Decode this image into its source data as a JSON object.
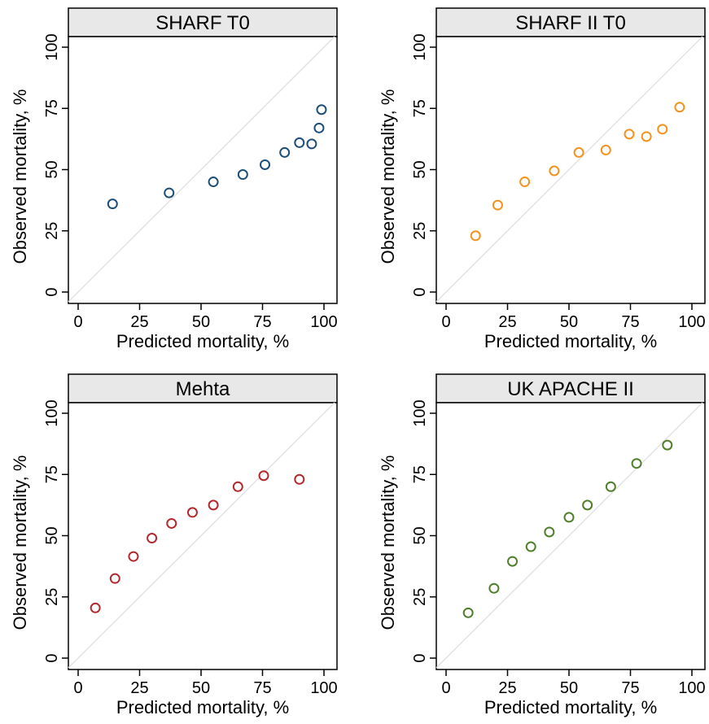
{
  "chart_data": [
    {
      "type": "scatter",
      "title": "SHARF T0",
      "xlabel": "Predicted mortality, %",
      "ylabel": "Observed mortality, %",
      "xlim": [
        0,
        100
      ],
      "ylim": [
        0,
        100
      ],
      "xticks": [
        0,
        25,
        50,
        75,
        100
      ],
      "yticks": [
        0,
        25,
        50,
        75,
        100
      ],
      "reference_line": "diagonal y = x",
      "grid": false,
      "marker": "hollow circle",
      "color": "#1f4e79",
      "x": [
        14,
        37,
        55,
        67,
        76,
        84,
        90,
        95,
        98,
        99
      ],
      "y": [
        36,
        40.5,
        45,
        48,
        52,
        57,
        61,
        60.5,
        67,
        74.5
      ]
    },
    {
      "type": "scatter",
      "title": "SHARF II T0",
      "xlabel": "Predicted mortality, %",
      "ylabel": "Observed mortality, %",
      "xlim": [
        0,
        100
      ],
      "ylim": [
        0,
        100
      ],
      "xticks": [
        0,
        25,
        50,
        75,
        100
      ],
      "yticks": [
        0,
        25,
        50,
        75,
        100
      ],
      "reference_line": "diagonal y = x",
      "grid": false,
      "marker": "hollow circle",
      "color": "#f5921e",
      "x": [
        12,
        21,
        32,
        44,
        54,
        65,
        74.5,
        81.5,
        88,
        95
      ],
      "y": [
        23,
        35.5,
        45,
        49.5,
        57,
        58,
        64.5,
        63.5,
        66.5,
        75.5
      ]
    },
    {
      "type": "scatter",
      "title": "Mehta",
      "xlabel": "Predicted mortality, %",
      "ylabel": "Observed mortality, %",
      "xlim": [
        0,
        100
      ],
      "ylim": [
        0,
        100
      ],
      "xticks": [
        0,
        25,
        50,
        75,
        100
      ],
      "yticks": [
        0,
        25,
        50,
        75,
        100
      ],
      "reference_line": "diagonal y = x",
      "grid": false,
      "marker": "hollow circle",
      "color": "#b22a2e",
      "x": [
        7,
        15,
        22.5,
        30,
        38,
        46.5,
        55,
        65,
        75.5,
        90
      ],
      "y": [
        20.5,
        32.5,
        41.5,
        49,
        55,
        59.5,
        62.5,
        70,
        74.5,
        73
      ]
    },
    {
      "type": "scatter",
      "title": "UK APACHE II",
      "xlabel": "Predicted mortality, %",
      "ylabel": "Observed mortality, %",
      "xlim": [
        0,
        100
      ],
      "ylim": [
        0,
        100
      ],
      "xticks": [
        0,
        25,
        50,
        75,
        100
      ],
      "yticks": [
        0,
        25,
        50,
        75,
        100
      ],
      "reference_line": "diagonal y = x",
      "grid": false,
      "marker": "hollow circle",
      "color": "#4f7f2a",
      "x": [
        9,
        19.5,
        27,
        34.5,
        42,
        50,
        57.5,
        67,
        77.5,
        90
      ],
      "y": [
        18.5,
        28.5,
        39.5,
        45.5,
        51.5,
        57.5,
        62.5,
        70,
        79.5,
        87
      ]
    }
  ]
}
